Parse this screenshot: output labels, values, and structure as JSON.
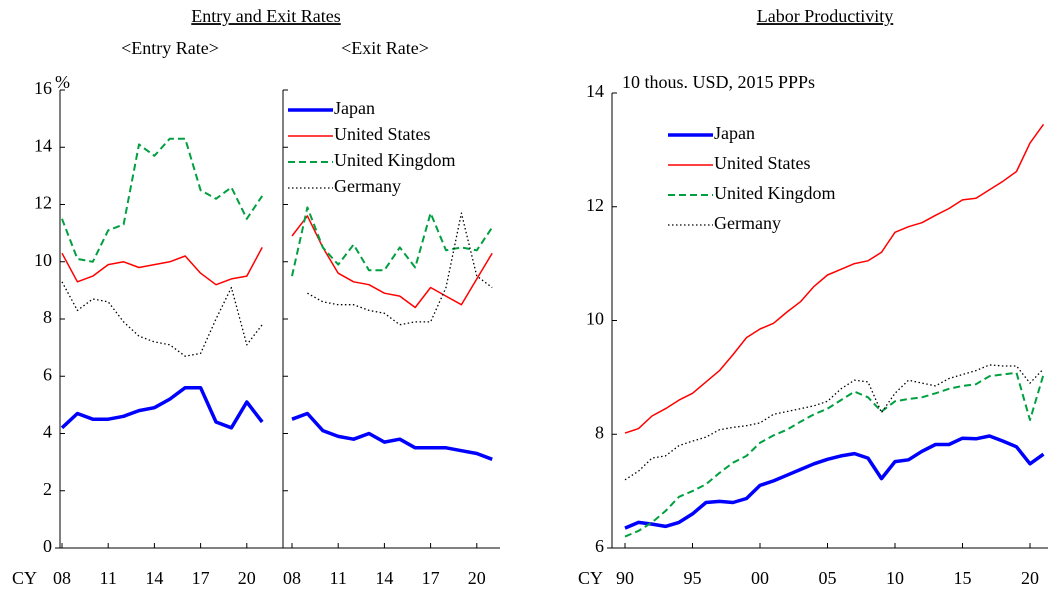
{
  "heading": "Entry and Exit Rates",
  "chart_data": [
    {
      "type": "line",
      "title": "<Entry Rate>",
      "y_label": "%",
      "x_label": "CY",
      "categories": [
        "08",
        null,
        null,
        "11",
        null,
        null,
        "14",
        null,
        null,
        "17",
        null,
        null,
        "20",
        null
      ],
      "ylim": [
        0,
        16
      ],
      "yticks": [
        0,
        2,
        4,
        6,
        8,
        10,
        12,
        14,
        16
      ],
      "series": [
        {
          "color": "#0000ff",
          "style": "thick",
          "values": [
            4.2,
            4.7,
            4.5,
            4.5,
            4.6,
            4.8,
            4.9,
            5.2,
            5.6,
            5.6,
            4.4,
            4.2,
            5.1,
            4.4
          ]
        },
        {
          "color": "#ff0000",
          "style": "solid",
          "values": [
            10.3,
            9.3,
            9.5,
            9.9,
            10.0,
            9.8,
            9.9,
            10.0,
            10.2,
            9.6,
            9.2,
            9.4,
            9.5,
            10.5
          ]
        },
        {
          "color": "#00a040",
          "style": "dashed",
          "values": [
            11.5,
            10.1,
            10.0,
            11.1,
            11.3,
            14.1,
            13.7,
            14.3,
            14.3,
            12.5,
            12.2,
            12.6,
            11.5,
            12.3
          ]
        },
        {
          "color": "#000000",
          "style": "dotted",
          "values": [
            9.3,
            8.3,
            8.7,
            8.6,
            7.9,
            7.4,
            7.2,
            7.1,
            6.7,
            6.8,
            8.0,
            9.1,
            7.1,
            7.8
          ]
        }
      ]
    },
    {
      "type": "line",
      "title": "<Exit Rate>",
      "legend": "upper left",
      "categories": [
        "08",
        null,
        null,
        "11",
        null,
        null,
        "14",
        null,
        null,
        "17",
        null,
        null,
        "20",
        null
      ],
      "ylim": [
        0,
        16
      ],
      "yticks": [
        0,
        2,
        4,
        6,
        8,
        10,
        12,
        14,
        16
      ],
      "series": [
        {
          "name": "Japan",
          "color": "#0000ff",
          "style": "thick",
          "values": [
            4.5,
            4.7,
            4.1,
            3.9,
            3.8,
            4.0,
            3.7,
            3.8,
            3.5,
            3.5,
            3.5,
            3.4,
            3.3,
            3.1
          ]
        },
        {
          "name": "United States",
          "color": "#ff0000",
          "style": "solid",
          "values": [
            10.9,
            11.6,
            10.5,
            9.6,
            9.3,
            9.2,
            8.9,
            8.8,
            8.4,
            9.1,
            8.8,
            8.5,
            9.4,
            10.3
          ]
        },
        {
          "name": "United Kingdom",
          "color": "#00a040",
          "style": "dashed",
          "values": [
            9.5,
            11.9,
            10.5,
            9.9,
            10.6,
            9.7,
            9.7,
            10.5,
            9.8,
            11.7,
            10.4,
            10.5,
            10.4,
            11.2
          ]
        },
        {
          "name": "Germany",
          "color": "#000000",
          "style": "dotted",
          "values": [
            null,
            8.9,
            8.6,
            8.5,
            8.5,
            8.3,
            8.2,
            7.8,
            7.9,
            7.9,
            9.1,
            11.7,
            9.5,
            9.1
          ]
        }
      ]
    },
    {
      "type": "line",
      "title": "Labor Productivity",
      "y_label": "10 thous. USD, 2015 PPPs",
      "x_label": "CY",
      "legend": "upper left",
      "categories": [
        "90",
        null,
        null,
        null,
        null,
        "95",
        null,
        null,
        null,
        null,
        "00",
        null,
        null,
        null,
        null,
        "05",
        null,
        null,
        null,
        null,
        "10",
        null,
        null,
        null,
        null,
        "15",
        null,
        null,
        null,
        null,
        "20",
        null
      ],
      "ylim": [
        6,
        14
      ],
      "yticks": [
        6,
        8,
        10,
        12,
        14
      ],
      "series": [
        {
          "name": "Japan",
          "color": "#0000ff",
          "style": "thick",
          "values": [
            6.35,
            6.45,
            6.42,
            6.38,
            6.45,
            6.6,
            6.8,
            6.82,
            6.8,
            6.87,
            7.1,
            7.18,
            7.28,
            7.38,
            7.48,
            7.56,
            7.62,
            7.66,
            7.58,
            7.22,
            7.52,
            7.55,
            7.7,
            7.82,
            7.82,
            7.93,
            7.92,
            7.97,
            7.88,
            7.78,
            7.48,
            7.65
          ]
        },
        {
          "name": "United States",
          "color": "#ff0000",
          "style": "solid",
          "values": [
            8.02,
            8.1,
            8.32,
            8.45,
            8.6,
            8.72,
            8.92,
            9.12,
            9.4,
            9.7,
            9.85,
            9.95,
            10.15,
            10.33,
            10.6,
            10.8,
            10.9,
            11.0,
            11.05,
            11.2,
            11.55,
            11.65,
            11.72,
            11.85,
            11.97,
            12.12,
            12.15,
            12.3,
            12.45,
            12.62,
            13.12,
            13.45
          ]
        },
        {
          "name": "United Kingdom",
          "color": "#00a040",
          "style": "dashed",
          "values": [
            6.2,
            6.3,
            6.45,
            6.65,
            6.9,
            7.0,
            7.12,
            7.32,
            7.5,
            7.62,
            7.85,
            7.98,
            8.08,
            8.22,
            8.35,
            8.45,
            8.6,
            8.75,
            8.65,
            8.4,
            8.58,
            8.62,
            8.65,
            8.72,
            8.8,
            8.85,
            8.88,
            9.02,
            9.05,
            9.08,
            8.25,
            9.05
          ]
        },
        {
          "name": "Germany",
          "color": "#000000",
          "style": "dotted",
          "values": [
            7.2,
            7.35,
            7.58,
            7.62,
            7.8,
            7.88,
            7.95,
            8.08,
            8.12,
            8.15,
            8.2,
            8.35,
            8.4,
            8.45,
            8.5,
            8.58,
            8.8,
            8.95,
            8.92,
            8.38,
            8.72,
            8.95,
            8.9,
            8.85,
            8.98,
            9.05,
            9.12,
            9.22,
            9.2,
            9.2,
            8.9,
            9.15
          ]
        }
      ]
    }
  ]
}
